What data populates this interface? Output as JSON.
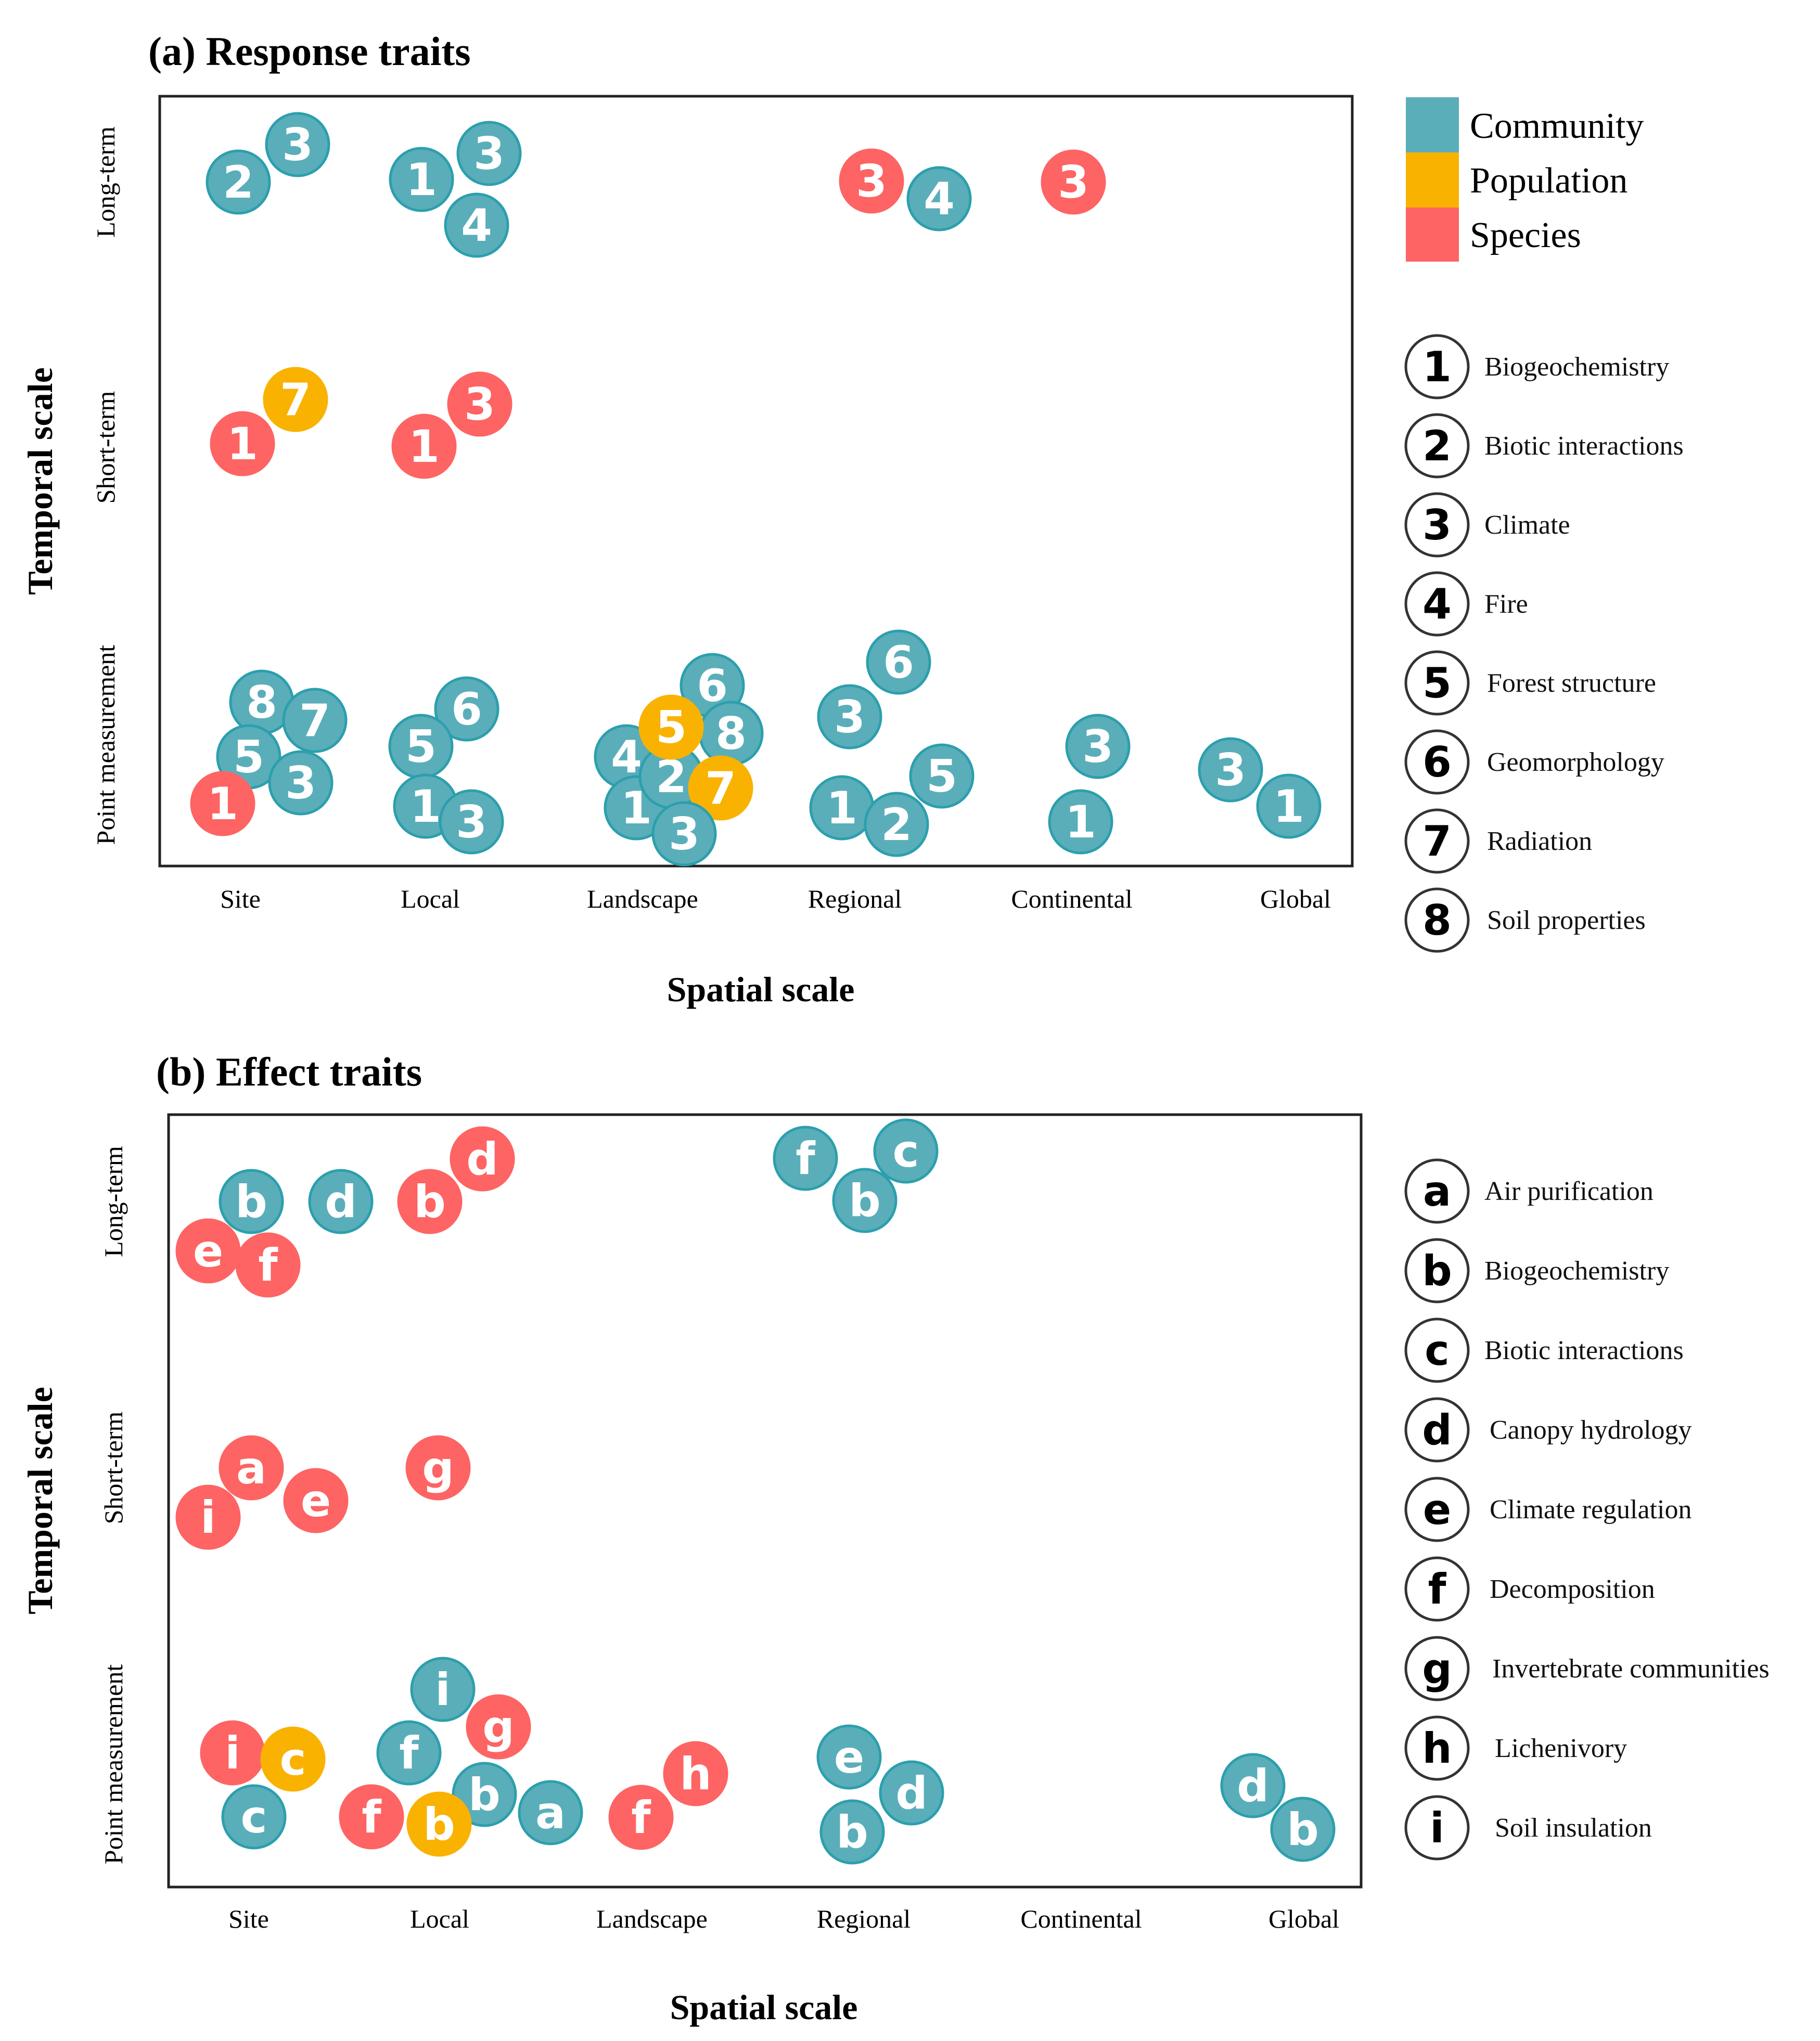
{
  "colors": {
    "community": "#5AAEB9",
    "population": "#F9B200",
    "species": "#FD6463",
    "stroke": "#2C9FAD",
    "frame": "#222222"
  },
  "categories": {
    "community": "Community",
    "population": "Population",
    "species": "Species"
  },
  "panel_a": {
    "title": "(a) Response traits",
    "xlabel": "Spatial scale",
    "ylabel": "Temporal scale",
    "x_ticks": [
      "Site",
      "Local",
      "Landscape",
      "Regional",
      "Continental",
      "Global"
    ],
    "y_ticks": [
      "Long-term",
      "Short-term",
      "Point measurement"
    ],
    "legend": [
      {
        "key": "1",
        "label": "Biogeochemistry"
      },
      {
        "key": "2",
        "label": "Biotic interactions"
      },
      {
        "key": "3",
        "label": "Climate"
      },
      {
        "key": "4",
        "label": "Fire"
      },
      {
        "key": "5",
        "label": "Forest structure"
      },
      {
        "key": "6",
        "label": "Geomorphology"
      },
      {
        "key": "7",
        "label": "Radiation"
      },
      {
        "key": "8",
        "label": "Soil properties"
      }
    ],
    "points": [
      {
        "label": "2",
        "cat": "community",
        "spatial": "Site",
        "temporal": "Long-term"
      },
      {
        "label": "3",
        "cat": "community",
        "spatial": "Site",
        "temporal": "Long-term"
      },
      {
        "label": "1",
        "cat": "community",
        "spatial": "Local",
        "temporal": "Long-term"
      },
      {
        "label": "3",
        "cat": "community",
        "spatial": "Local",
        "temporal": "Long-term"
      },
      {
        "label": "4",
        "cat": "community",
        "spatial": "Local",
        "temporal": "Long-term"
      },
      {
        "label": "3",
        "cat": "species",
        "spatial": "Regional",
        "temporal": "Long-term"
      },
      {
        "label": "4",
        "cat": "community",
        "spatial": "Regional",
        "temporal": "Long-term"
      },
      {
        "label": "3",
        "cat": "species",
        "spatial": "Continental",
        "temporal": "Long-term"
      },
      {
        "label": "1",
        "cat": "species",
        "spatial": "Site",
        "temporal": "Short-term"
      },
      {
        "label": "7",
        "cat": "population",
        "spatial": "Site",
        "temporal": "Short-term"
      },
      {
        "label": "1",
        "cat": "species",
        "spatial": "Local",
        "temporal": "Short-term"
      },
      {
        "label": "3",
        "cat": "species",
        "spatial": "Local",
        "temporal": "Short-term"
      },
      {
        "label": "8",
        "cat": "community",
        "spatial": "Site",
        "temporal": "Point measurement"
      },
      {
        "label": "7",
        "cat": "community",
        "spatial": "Site",
        "temporal": "Point measurement"
      },
      {
        "label": "5",
        "cat": "community",
        "spatial": "Site",
        "temporal": "Point measurement"
      },
      {
        "label": "3",
        "cat": "community",
        "spatial": "Site",
        "temporal": "Point measurement"
      },
      {
        "label": "1",
        "cat": "species",
        "spatial": "Site",
        "temporal": "Point measurement"
      },
      {
        "label": "6",
        "cat": "community",
        "spatial": "Local",
        "temporal": "Point measurement"
      },
      {
        "label": "5",
        "cat": "community",
        "spatial": "Local",
        "temporal": "Point measurement"
      },
      {
        "label": "1",
        "cat": "community",
        "spatial": "Local",
        "temporal": "Point measurement"
      },
      {
        "label": "3",
        "cat": "community",
        "spatial": "Local",
        "temporal": "Point measurement"
      },
      {
        "label": "6",
        "cat": "community",
        "spatial": "Landscape",
        "temporal": "Point measurement"
      },
      {
        "label": "4",
        "cat": "community",
        "spatial": "Landscape",
        "temporal": "Point measurement"
      },
      {
        "label": "8",
        "cat": "community",
        "spatial": "Landscape",
        "temporal": "Point measurement"
      },
      {
        "label": "1",
        "cat": "community",
        "spatial": "Landscape",
        "temporal": "Point measurement"
      },
      {
        "label": "2",
        "cat": "community",
        "spatial": "Landscape",
        "temporal": "Point measurement"
      },
      {
        "label": "5",
        "cat": "population",
        "spatial": "Landscape",
        "temporal": "Point measurement"
      },
      {
        "label": "7",
        "cat": "population",
        "spatial": "Landscape",
        "temporal": "Point measurement"
      },
      {
        "label": "3",
        "cat": "community",
        "spatial": "Landscape",
        "temporal": "Point measurement"
      },
      {
        "label": "6",
        "cat": "community",
        "spatial": "Regional",
        "temporal": "Point measurement"
      },
      {
        "label": "3",
        "cat": "community",
        "spatial": "Regional",
        "temporal": "Point measurement"
      },
      {
        "label": "5",
        "cat": "community",
        "spatial": "Regional",
        "temporal": "Point measurement"
      },
      {
        "label": "1",
        "cat": "community",
        "spatial": "Regional",
        "temporal": "Point measurement"
      },
      {
        "label": "2",
        "cat": "community",
        "spatial": "Regional",
        "temporal": "Point measurement"
      },
      {
        "label": "3",
        "cat": "community",
        "spatial": "Continental",
        "temporal": "Point measurement"
      },
      {
        "label": "1",
        "cat": "community",
        "spatial": "Continental",
        "temporal": "Point measurement"
      },
      {
        "label": "3",
        "cat": "community",
        "spatial": "Global",
        "temporal": "Point measurement"
      },
      {
        "label": "1",
        "cat": "community",
        "spatial": "Global",
        "temporal": "Point measurement"
      }
    ]
  },
  "panel_b": {
    "title": "(b) Effect traits",
    "xlabel": "Spatial scale",
    "ylabel": "Temporal scale",
    "x_ticks": [
      "Site",
      "Local",
      "Landscape",
      "Regional",
      "Continental",
      "Global"
    ],
    "y_ticks": [
      "Long-term",
      "Short-term",
      "Point measurement"
    ],
    "legend": [
      {
        "key": "a",
        "label": "Air purification"
      },
      {
        "key": "b",
        "label": "Biogeochemistry"
      },
      {
        "key": "c",
        "label": "Biotic interactions"
      },
      {
        "key": "d",
        "label": "Canopy hydrology"
      },
      {
        "key": "e",
        "label": "Climate regulation"
      },
      {
        "key": "f",
        "label": "Decomposition"
      },
      {
        "key": "g",
        "label": "Invertebrate communities"
      },
      {
        "key": "h",
        "label": "Lichenivory"
      },
      {
        "key": "i",
        "label": "Soil insulation"
      }
    ],
    "points": [
      {
        "label": "b",
        "cat": "community",
        "spatial": "Site",
        "temporal": "Long-term"
      },
      {
        "label": "d",
        "cat": "community",
        "spatial": "Site",
        "temporal": "Long-term"
      },
      {
        "label": "e",
        "cat": "species",
        "spatial": "Site",
        "temporal": "Long-term"
      },
      {
        "label": "f",
        "cat": "species",
        "spatial": "Site",
        "temporal": "Long-term"
      },
      {
        "label": "d",
        "cat": "species",
        "spatial": "Local",
        "temporal": "Long-term"
      },
      {
        "label": "b",
        "cat": "species",
        "spatial": "Local",
        "temporal": "Long-term"
      },
      {
        "label": "f",
        "cat": "community",
        "spatial": "Regional",
        "temporal": "Long-term"
      },
      {
        "label": "c",
        "cat": "community",
        "spatial": "Regional",
        "temporal": "Long-term"
      },
      {
        "label": "b",
        "cat": "community",
        "spatial": "Regional",
        "temporal": "Long-term"
      },
      {
        "label": "a",
        "cat": "species",
        "spatial": "Site",
        "temporal": "Short-term"
      },
      {
        "label": "i",
        "cat": "species",
        "spatial": "Site",
        "temporal": "Short-term"
      },
      {
        "label": "e",
        "cat": "species",
        "spatial": "Site",
        "temporal": "Short-term"
      },
      {
        "label": "g",
        "cat": "species",
        "spatial": "Local",
        "temporal": "Short-term"
      },
      {
        "label": "i",
        "cat": "species",
        "spatial": "Site",
        "temporal": "Point measurement"
      },
      {
        "label": "c",
        "cat": "population",
        "spatial": "Site",
        "temporal": "Point measurement"
      },
      {
        "label": "c",
        "cat": "community",
        "spatial": "Site",
        "temporal": "Point measurement"
      },
      {
        "label": "i",
        "cat": "community",
        "spatial": "Local",
        "temporal": "Point measurement"
      },
      {
        "label": "g",
        "cat": "species",
        "spatial": "Local",
        "temporal": "Point measurement"
      },
      {
        "label": "f",
        "cat": "community",
        "spatial": "Local",
        "temporal": "Point measurement"
      },
      {
        "label": "b",
        "cat": "community",
        "spatial": "Local",
        "temporal": "Point measurement"
      },
      {
        "label": "a",
        "cat": "community",
        "spatial": "Local",
        "temporal": "Point measurement"
      },
      {
        "label": "f",
        "cat": "species",
        "spatial": "Local",
        "temporal": "Point measurement"
      },
      {
        "label": "b",
        "cat": "population",
        "spatial": "Local",
        "temporal": "Point measurement"
      },
      {
        "label": "h",
        "cat": "species",
        "spatial": "Landscape",
        "temporal": "Point measurement"
      },
      {
        "label": "f",
        "cat": "species",
        "spatial": "Landscape",
        "temporal": "Point measurement"
      },
      {
        "label": "e",
        "cat": "community",
        "spatial": "Regional",
        "temporal": "Point measurement"
      },
      {
        "label": "d",
        "cat": "community",
        "spatial": "Regional",
        "temporal": "Point measurement"
      },
      {
        "label": "b",
        "cat": "community",
        "spatial": "Regional",
        "temporal": "Point measurement"
      },
      {
        "label": "d",
        "cat": "community",
        "spatial": "Global",
        "temporal": "Point measurement"
      },
      {
        "label": "b",
        "cat": "community",
        "spatial": "Global",
        "temporal": "Point measurement"
      }
    ]
  }
}
